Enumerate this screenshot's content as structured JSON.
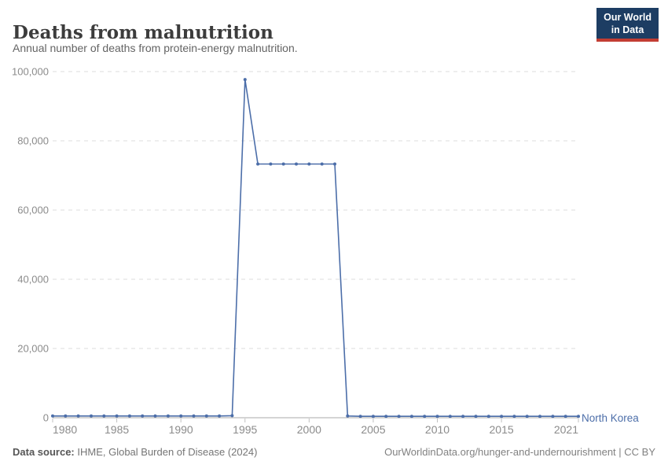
{
  "header": {
    "title": "Deaths from malnutrition",
    "subtitle": "Annual number of deaths from protein-energy malnutrition."
  },
  "logo": {
    "line1": "Our World",
    "line2": "in Data",
    "bg_color": "#1d3d63",
    "bar_color": "#c23d33"
  },
  "series_label": "North Korea",
  "footer": {
    "datasource_label": "Data source:",
    "datasource_value": " IHME, Global Burden of Disease (2024)",
    "credit": "OurWorldinData.org/hunger-and-undernourishment | CC BY"
  },
  "chart_data": {
    "type": "line",
    "title": "Deaths from malnutrition",
    "subtitle": "Annual number of deaths from protein-energy malnutrition.",
    "xlabel": "",
    "ylabel": "",
    "xlim": [
      1980,
      2021
    ],
    "ylim": [
      0,
      100000
    ],
    "grid": "horizontal-dashed",
    "legend_position": "end-of-line",
    "x_tick_values": [
      1980,
      1985,
      1990,
      1995,
      2000,
      2005,
      2010,
      2015,
      2021
    ],
    "x_tick_labels": [
      "1980",
      "1985",
      "1990",
      "1995",
      "2000",
      "2005",
      "2010",
      "2015",
      "2021"
    ],
    "y_tick_values": [
      0,
      20000,
      40000,
      60000,
      80000,
      100000
    ],
    "y_tick_labels": [
      "0",
      "20,000",
      "40,000",
      "60,000",
      "80,000",
      "100,000"
    ],
    "series": [
      {
        "name": "North Korea",
        "color": "#4c6ea9",
        "x": [
          1980,
          1981,
          1982,
          1983,
          1984,
          1985,
          1986,
          1987,
          1988,
          1989,
          1990,
          1991,
          1992,
          1993,
          1994,
          1995,
          1996,
          1997,
          1998,
          1999,
          2000,
          2001,
          2002,
          2003,
          2004,
          2005,
          2006,
          2007,
          2008,
          2009,
          2010,
          2011,
          2012,
          2013,
          2014,
          2015,
          2016,
          2017,
          2018,
          2019,
          2020,
          2021
        ],
        "values": [
          500,
          500,
          500,
          500,
          500,
          500,
          500,
          500,
          500,
          500,
          500,
          500,
          500,
          500,
          600,
          97700,
          73300,
          73300,
          73300,
          73300,
          73300,
          73300,
          73300,
          500,
          400,
          400,
          400,
          400,
          400,
          400,
          400,
          400,
          400,
          400,
          400,
          400,
          400,
          400,
          400,
          400,
          400,
          400
        ]
      }
    ]
  }
}
